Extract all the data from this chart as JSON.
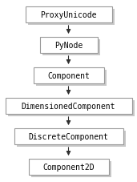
{
  "nodes": [
    "ProxyUnicode",
    "PyNode",
    "Component",
    "DimensionedComponent",
    "DiscreteComponent",
    "Component2D"
  ],
  "bg_color": "#ffffff",
  "box_fill": "#ffffff",
  "box_edge": "#999999",
  "shadow_color": "#c8c8c8",
  "arrow_color": "#303030",
  "font_color": "#000000",
  "font_size": 7.0,
  "font_family": "DejaVu Sans Mono"
}
